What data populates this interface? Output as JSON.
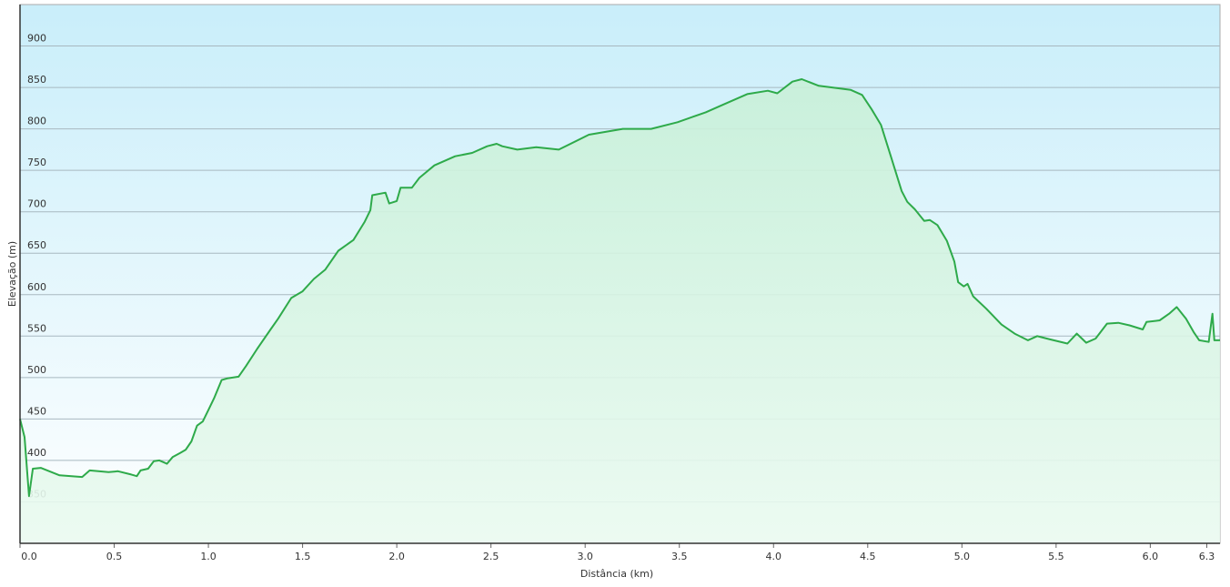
{
  "chart_data": {
    "type": "area",
    "x_label": "Distância  (km)",
    "y_label": "Elevação (m)",
    "color": "#2eaa4a",
    "grid": true,
    "xlim": [
      0,
      6.37
    ],
    "ylim": [
      300,
      950
    ],
    "xticks": [
      {
        "value": 0,
        "label": "0.0"
      },
      0.5,
      {
        "value": 1,
        "label": "1.0"
      },
      1.5,
      {
        "value": 2,
        "label": "2.0"
      },
      2.5,
      {
        "value": 3,
        "label": "3.0"
      },
      3.5,
      {
        "value": 4,
        "label": "4.0"
      },
      4.5,
      {
        "value": 5,
        "label": "5.0"
      },
      5.5,
      {
        "value": 6,
        "label": "6.0"
      },
      6.3
    ],
    "yticks": [
      350,
      400,
      450,
      500,
      550,
      600,
      650,
      700,
      750,
      800,
      850,
      900
    ],
    "x": [
      0,
      0.024,
      0.048,
      0.068,
      0.11,
      0.21,
      0.33,
      0.37,
      0.47,
      0.52,
      0.59,
      0.62,
      0.64,
      0.68,
      0.71,
      0.74,
      0.78,
      0.81,
      0.85,
      0.88,
      0.91,
      0.94,
      0.97,
      1.0,
      1.03,
      1.07,
      1.1,
      1.16,
      1.2,
      1.26,
      1.33,
      1.37,
      1.44,
      1.5,
      1.56,
      1.62,
      1.69,
      1.77,
      1.83,
      1.86,
      1.87,
      1.94,
      1.96,
      2.0,
      2.02,
      2.08,
      2.12,
      2.2,
      2.31,
      2.4,
      2.48,
      2.53,
      2.56,
      2.64,
      2.74,
      2.86,
      3.02,
      3.2,
      3.35,
      3.49,
      3.64,
      3.73,
      3.86,
      3.97,
      4.02,
      4.1,
      4.15,
      4.24,
      4.41,
      4.47,
      4.52,
      4.57,
      4.62,
      4.68,
      4.71,
      4.75,
      4.8,
      4.83,
      4.87,
      4.92,
      4.96,
      4.98,
      5.01,
      5.03,
      5.06,
      5.13,
      5.21,
      5.28,
      5.35,
      5.4,
      5.47,
      5.56,
      5.61,
      5.66,
      5.71,
      5.77,
      5.83,
      5.89,
      5.96,
      5.98,
      6.05,
      6.1,
      6.14,
      6.19,
      6.23,
      6.26,
      6.31,
      6.33,
      6.34,
      6.37
    ],
    "values": [
      450,
      428,
      357,
      390,
      391,
      382,
      380,
      388,
      386,
      387,
      383,
      381,
      388,
      390,
      399,
      400,
      396,
      404,
      409,
      413,
      423,
      442,
      447,
      461,
      475,
      497,
      499,
      501,
      514,
      535,
      558,
      571,
      596,
      604,
      619,
      630,
      653,
      666,
      688,
      702,
      720,
      723,
      710,
      713,
      729,
      729,
      741,
      756,
      767,
      771,
      779,
      782,
      779,
      775,
      778,
      775,
      793,
      800,
      800,
      808,
      820,
      829,
      842,
      846,
      843,
      857,
      860,
      852,
      847,
      841,
      824,
      805,
      769,
      725,
      712,
      703,
      689,
      690,
      684,
      665,
      640,
      615,
      610,
      613,
      598,
      583,
      564,
      553,
      545,
      550,
      546,
      541,
      553,
      542,
      547,
      565,
      566,
      563,
      558,
      567,
      569,
      577,
      585,
      571,
      555,
      545,
      543,
      577,
      545,
      545
    ]
  }
}
